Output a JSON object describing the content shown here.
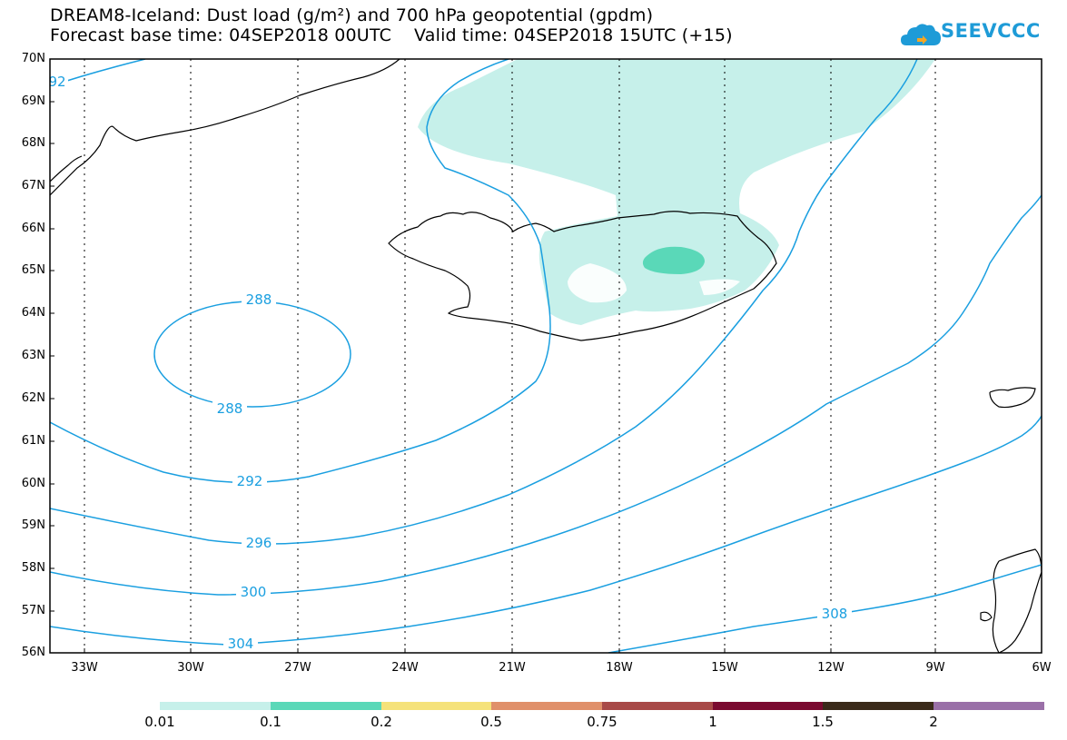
{
  "title": {
    "line1": "DREAM8-Iceland: Dust load (g/m²) and 700 hPa geopotential (gpdm)",
    "line2": "Forecast base time: 04SEP2018 00UTC    Valid time: 04SEP2018 15UTC (+15)"
  },
  "logo": {
    "text": "SEEVCCC",
    "icon": "cloud-icon",
    "color": "#1e9bd7"
  },
  "map": {
    "lat_labels": [
      "70N",
      "69N",
      "68N",
      "67N",
      "66N",
      "65N",
      "64N",
      "63N",
      "62N",
      "61N",
      "60N",
      "59N",
      "58N",
      "57N",
      "56N"
    ],
    "lon_labels": [
      "33W",
      "30W",
      "27W",
      "24W",
      "21W",
      "18W",
      "15W",
      "12W",
      "9W",
      "6W"
    ],
    "contour_color": "#1a9fe0",
    "contour_labels": {
      "c288_top": "288",
      "c288_bottom": "288",
      "c292": "292",
      "c292_edge": "92",
      "c296": "296",
      "c300": "300",
      "c304": "304",
      "c308": "308"
    },
    "dust_colors": {
      "low": "#c6f0ea",
      "mid": "#5ad8b8"
    }
  },
  "colorbar": {
    "labels": [
      "0.01",
      "0.1",
      "0.2",
      "0.5",
      "0.75",
      "1",
      "1.5",
      "2"
    ],
    "colors": [
      "#c6f0ea",
      "#5ad8b8",
      "#f5e27a",
      "#e0906a",
      "#a84a48",
      "#7a0a30",
      "#3a2a1a",
      "#9a70a8"
    ]
  }
}
